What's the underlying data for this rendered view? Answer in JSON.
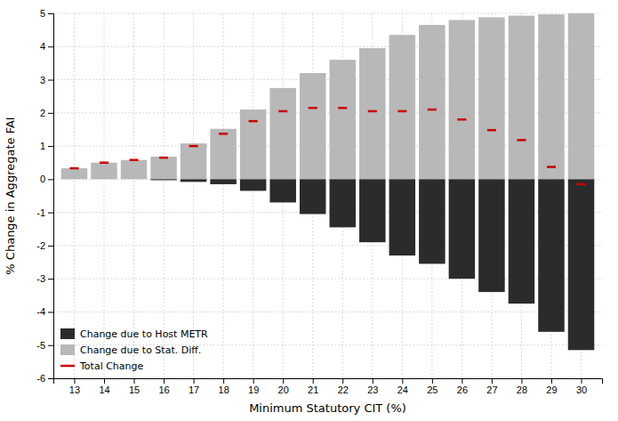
{
  "chart_data": {
    "type": "bar",
    "x": [
      13,
      14,
      15,
      16,
      17,
      18,
      19,
      20,
      21,
      22,
      23,
      24,
      25,
      26,
      27,
      28,
      29,
      30
    ],
    "series": [
      {
        "name": "Change due to Host METR",
        "type": "bar",
        "color": "#2b2b2b",
        "values": [
          0.0,
          0.0,
          0.0,
          -0.03,
          -0.08,
          -0.15,
          -0.35,
          -0.7,
          -1.05,
          -1.45,
          -1.9,
          -2.3,
          -2.55,
          -3.0,
          -3.4,
          -3.75,
          -4.6,
          -5.15
        ]
      },
      {
        "name": "Change due to Stat. Diff.",
        "type": "bar",
        "color": "#b8b8b8",
        "values": [
          0.33,
          0.5,
          0.58,
          0.68,
          1.08,
          1.52,
          2.1,
          2.75,
          3.2,
          3.6,
          3.95,
          4.35,
          4.65,
          4.8,
          4.88,
          4.93,
          4.97,
          5.0
        ]
      },
      {
        "name": "Total Change",
        "type": "scatter",
        "marker": "hline",
        "color": "#cc0000",
        "values": [
          0.33,
          0.5,
          0.58,
          0.65,
          1.0,
          1.37,
          1.75,
          2.05,
          2.15,
          2.15,
          2.05,
          2.05,
          2.1,
          1.8,
          1.48,
          1.18,
          0.37,
          -0.15
        ]
      }
    ],
    "xlabel": "Minimum Statutory CIT (%)",
    "ylabel": "% Change in Aggregate FAI",
    "xlim": [
      12.3,
      30.7
    ],
    "xticks": [
      13,
      14,
      15,
      16,
      17,
      18,
      19,
      20,
      21,
      22,
      23,
      24,
      25,
      26,
      27,
      28,
      29,
      30
    ],
    "ylim": [
      -6,
      5
    ],
    "yticks": [
      -6,
      -5,
      -4,
      -3,
      -2,
      -1,
      0,
      1,
      2,
      3,
      4,
      5
    ],
    "grid": true,
    "legend": "lower left"
  }
}
